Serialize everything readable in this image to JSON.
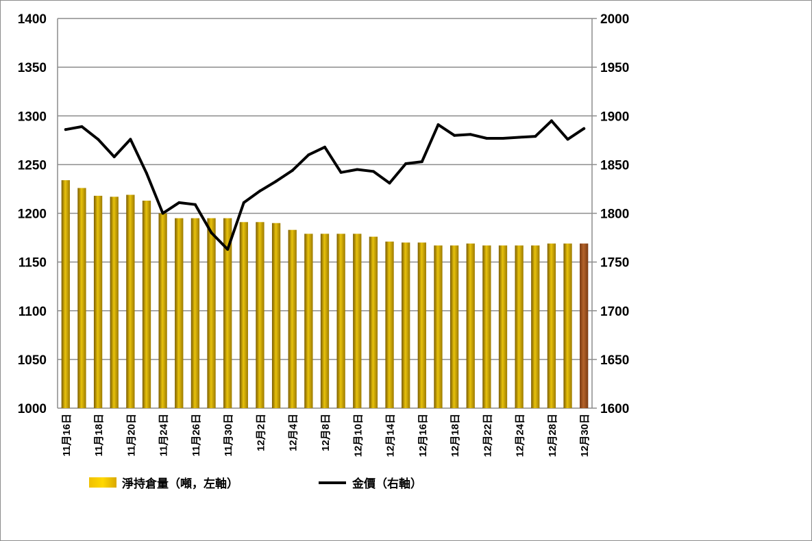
{
  "chart_data": {
    "type": "bar",
    "categories": [
      "11月16日",
      "11月17日",
      "11月18日",
      "11月19日",
      "11月20日",
      "11月23日",
      "11月24日",
      "11月25日",
      "11月26日",
      "11月27日",
      "11月30日",
      "12月1日",
      "12月2日",
      "12月3日",
      "12月4日",
      "12月7日",
      "12月8日",
      "12月9日",
      "12月10日",
      "12月11日",
      "12月14日",
      "12月15日",
      "12月16日",
      "12月17日",
      "12月18日",
      "12月21日",
      "12月22日",
      "12月23日",
      "12月24日",
      "12月25日",
      "12月28日",
      "12月29日",
      "12月30日"
    ],
    "visible_tick_labels": [
      "11月16日",
      "11月18日",
      "11月20日",
      "11月24日",
      "11月26日",
      "11月30日",
      "12月2日",
      "12月4日",
      "12月8日",
      "12月10日",
      "12月14日",
      "12月16日",
      "12月18日",
      "12月22日",
      "12月24日",
      "12月28日",
      "12月30日"
    ],
    "series": [
      {
        "name": "淨持倉量（噸，左軸）",
        "type": "bar",
        "axis": "left",
        "color": "#c9a400",
        "highlight_last_color": "#a0522d",
        "values": [
          1234,
          1226,
          1218,
          1217,
          1219,
          1213,
          1200,
          1195,
          1195,
          1195,
          1195,
          1191,
          1191,
          1190,
          1183,
          1179,
          1179,
          1179,
          1179,
          1176,
          1171,
          1170,
          1170,
          1167,
          1167,
          1169,
          1167,
          1167,
          1167,
          1167,
          1169,
          1169,
          1169
        ]
      },
      {
        "name": "金價（右軸）",
        "type": "line",
        "axis": "right",
        "color": "#000000",
        "values": [
          1886,
          1889,
          1876,
          1858,
          1876,
          1841,
          1800,
          1811,
          1809,
          1780,
          1763,
          1811,
          1823,
          1833,
          1844,
          1860,
          1868,
          1842,
          1845,
          1843,
          1831,
          1851,
          1853,
          1891,
          1880,
          1881,
          1877,
          1877,
          1878,
          1879,
          1895,
          1876,
          1887
        ]
      }
    ],
    "y_left": {
      "min": 1000,
      "max": 1400,
      "ticks": [
        1000,
        1050,
        1100,
        1150,
        1200,
        1250,
        1300,
        1350,
        1400
      ]
    },
    "y_right": {
      "min": 1600,
      "max": 2000,
      "ticks": [
        1600,
        1650,
        1700,
        1750,
        1800,
        1850,
        1900,
        1950,
        2000
      ]
    },
    "grid": true,
    "legend_placement": "bottom"
  }
}
